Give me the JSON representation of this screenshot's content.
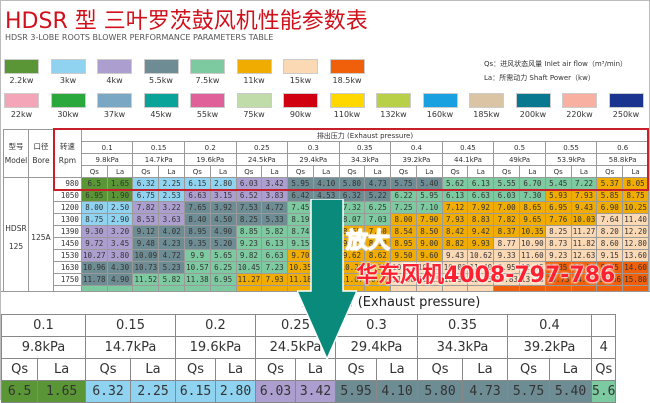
{
  "header": {
    "title": "HDSR 型 三叶罗茨鼓风机性能参数表",
    "subtitle": "HDSR 3-LOBE ROOTS BLOWER PERFORMANCE PARAMETERS TABLE"
  },
  "legend": {
    "row1": [
      {
        "label": "2.2kw",
        "color": "#5a9636"
      },
      {
        "label": "3kw",
        "color": "#8fd3f0"
      },
      {
        "label": "4kw",
        "color": "#ac9fd0"
      },
      {
        "label": "5.5kw",
        "color": "#6e8c93"
      },
      {
        "label": "7.5kw",
        "color": "#7dc9a0"
      },
      {
        "label": "11kw",
        "color": "#f0ac00"
      },
      {
        "label": "15kw",
        "color": "#fcd9b5"
      },
      {
        "label": "18.5kw",
        "color": "#f0600a"
      }
    ],
    "row2": [
      {
        "label": "22kw",
        "color": "#f4a6b8"
      },
      {
        "label": "30kw",
        "color": "#2aa83c"
      },
      {
        "label": "37kw",
        "color": "#7aa8c4"
      },
      {
        "label": "45kw",
        "color": "#0aa39a"
      },
      {
        "label": "55kw",
        "color": "#e0609a"
      },
      {
        "label": "75kw",
        "color": "#c0dca8"
      },
      {
        "label": "90kw",
        "color": "#d00010"
      },
      {
        "label": "110kw",
        "color": "#ffd800"
      },
      {
        "label": "132kw",
        "color": "#b8d048"
      },
      {
        "label": "160kw",
        "color": "#18a0e0"
      },
      {
        "label": "185kw",
        "color": "#dac4a4"
      },
      {
        "label": "200kw",
        "color": "#087890"
      },
      {
        "label": "220kw",
        "color": "#f8b0a0"
      },
      {
        "label": "250kw",
        "color": "#1a3490"
      }
    ],
    "notes": {
      "qs": "Qs：进风状态风量 Inlet air flow（m³/min）",
      "la": "La：所需动力 Shaft Power（kw）"
    }
  },
  "table": {
    "col_model_cn": "型号",
    "col_model_en": "Model",
    "col_bore_cn": "口径",
    "col_bore_en": "Bore",
    "col_rpm_cn": "转速",
    "col_rpm_en": "Rpm",
    "exhaust_label": "排出压力 (Exhaust pressure)",
    "pressures": [
      "0.1",
      "0.15",
      "0.2",
      "0.25",
      "0.3",
      "0.35",
      "0.4",
      "0.45",
      "0.5",
      "0.55",
      "0.6"
    ],
    "kpa": [
      "9.8kPa",
      "14.7kPa",
      "19.6kPa",
      "24.5kPa",
      "29.4kPa",
      "34.3kPa",
      "39.2kPa",
      "44.1kPa",
      "49kPa",
      "53.9kPa",
      "58.8kPa"
    ],
    "qs_label": "Qs",
    "la_label": "La",
    "model_line1": "HDSR",
    "model_line2": "125",
    "bore": "125A",
    "rows": [
      {
        "rpm": "980",
        "cells": [
          [
            "6.5",
            "1.65",
            "#5a9636"
          ],
          [
            "6.32",
            "2.25",
            "#8fd3f0"
          ],
          [
            "6.15",
            "2.80",
            "#8fd3f0"
          ],
          [
            "6.03",
            "3.42",
            "#ac9fd0"
          ],
          [
            "5.95",
            "4.10",
            "#6e8c93"
          ],
          [
            "5.80",
            "4.73",
            "#6e8c93"
          ],
          [
            "5.75",
            "5.40",
            "#6e8c93"
          ],
          [
            "5.62",
            "6.13",
            "#7dc9a0"
          ],
          [
            "5.55",
            "6.70",
            "#7dc9a0"
          ],
          [
            "5.45",
            "7.22",
            "#7dc9a0"
          ],
          [
            "5.37",
            "8.05",
            "#f0ac00"
          ]
        ]
      },
      {
        "rpm": "1050",
        "cells": [
          [
            "6.95",
            "1.90",
            "#5a9636"
          ],
          [
            "6.75",
            "2.53",
            "#8fd3f0"
          ],
          [
            "6.63",
            "3.15",
            "#ac9fd0"
          ],
          [
            "6.52",
            "3.83",
            "#ac9fd0"
          ],
          [
            "6.42",
            "4.53",
            "#6e8c93"
          ],
          [
            "6.32",
            "5.22",
            "#6e8c93"
          ],
          [
            "6.22",
            "5.95",
            "#7dc9a0"
          ],
          [
            "6.13",
            "6.63",
            "#7dc9a0"
          ],
          [
            "6.03",
            "7.30",
            "#7dc9a0"
          ],
          [
            "5.93",
            "7.93",
            "#f0ac00"
          ],
          [
            "5.85",
            "8.75",
            "#f0ac00"
          ]
        ]
      },
      {
        "rpm": "1200",
        "cells": [
          [
            "8.00",
            "2.50",
            "#8fd3f0"
          ],
          [
            "7.82",
            "3.22",
            "#ac9fd0"
          ],
          [
            "7.65",
            "3.92",
            "#6e8c93"
          ],
          [
            "7.53",
            "4.72",
            "#6e8c93"
          ],
          [
            "7.45",
            "5.45",
            "#7dc9a0"
          ],
          [
            "7.32",
            "6.25",
            "#7dc9a0"
          ],
          [
            "7.25",
            "7.10",
            "#7dc9a0"
          ],
          [
            "7.12",
            "7.92",
            "#f0ac00"
          ],
          [
            "7.00",
            "8.65",
            "#f0ac00"
          ],
          [
            "6.95",
            "9.43",
            "#f0ac00"
          ],
          [
            "6.90",
            "10.25",
            "#f0ac00"
          ]
        ]
      },
      {
        "rpm": "1300",
        "cells": [
          [
            "8.75",
            "2.90",
            "#8fd3f0"
          ],
          [
            "8.53",
            "3.63",
            "#ac9fd0"
          ],
          [
            "8.40",
            "4.50",
            "#6e8c93"
          ],
          [
            "8.25",
            "5.33",
            "#6e8c93"
          ],
          [
            "8.19",
            "6.10",
            "#7dc9a0"
          ],
          [
            "8.07",
            "7.03",
            "#7dc9a0"
          ],
          [
            "8.00",
            "7.90",
            "#f0ac00"
          ],
          [
            "7.93",
            "8.83",
            "#f0ac00"
          ],
          [
            "7.82",
            "9.65",
            "#f0ac00"
          ],
          [
            "7.76",
            "10.03",
            "#f0ac00"
          ],
          [
            "7.64",
            "11.40",
            "#fcd9b5"
          ]
        ]
      },
      {
        "rpm": "1390",
        "cells": [
          [
            "9.30",
            "3.20",
            "#ac9fd0"
          ],
          [
            "9.12",
            "4.02",
            "#6e8c93"
          ],
          [
            "8.95",
            "4.90",
            "#6e8c93"
          ],
          [
            "8.85",
            "5.82",
            "#7dc9a0"
          ],
          [
            "8.74",
            "6.70",
            "#7dc9a0"
          ],
          [
            "8.65",
            "7.60",
            "#f0ac00"
          ],
          [
            "8.54",
            "8.50",
            "#f0ac00"
          ],
          [
            "8.42",
            "9.42",
            "#f0ac00"
          ],
          [
            "8.37",
            "10.35",
            "#f0ac00"
          ],
          [
            "8.25",
            "11.27",
            "#fcd9b5"
          ],
          [
            "8.20",
            "12.20",
            "#fcd9b5"
          ]
        ]
      },
      {
        "rpm": "1450",
        "cells": [
          [
            "9.72",
            "3.45",
            "#ac9fd0"
          ],
          [
            "9.48",
            "4.23",
            "#6e8c93"
          ],
          [
            "9.35",
            "5.20",
            "#6e8c93"
          ],
          [
            "9.23",
            "6.13",
            "#7dc9a0"
          ],
          [
            "9.15",
            "7.05",
            "#7dc9a0"
          ],
          [
            "9.05",
            "8.10",
            "#f0ac00"
          ],
          [
            "8.95",
            "9.00",
            "#f0ac00"
          ],
          [
            "8.82",
            "9.93",
            "#f0ac00"
          ],
          [
            "8.77",
            "10.90",
            "#fcd9b5"
          ],
          [
            "8.73",
            "11.82",
            "#fcd9b5"
          ],
          [
            "8.60",
            "12.80",
            "#fcd9b5"
          ]
        ]
      },
      {
        "rpm": "1530",
        "cells": [
          [
            "10.27",
            "3.80",
            "#ac9fd0"
          ],
          [
            "10.09",
            "4.72",
            "#6e8c93"
          ],
          [
            "9.9",
            "5.65",
            "#7dc9a0"
          ],
          [
            "9.82",
            "6.63",
            "#7dc9a0"
          ],
          [
            "9.70",
            "7.55",
            "#f0ac00"
          ],
          [
            "9.62",
            "8.62",
            "#f0ac00"
          ],
          [
            "9.50",
            "9.60",
            "#f0ac00"
          ],
          [
            "9.43",
            "10.62",
            "#fcd9b5"
          ],
          [
            "9.33",
            "11.60",
            "#fcd9b5"
          ],
          [
            "9.23",
            "12.63",
            "#fcd9b5"
          ],
          [
            "9.15",
            "13.60",
            "#fcd9b5"
          ]
        ]
      },
      {
        "rpm": "1630",
        "cells": [
          [
            "10.96",
            "4.30",
            "#6e8c93"
          ],
          [
            "10.73",
            "5.23",
            "#6e8c93"
          ],
          [
            "10.57",
            "6.25",
            "#7dc9a0"
          ],
          [
            "10.45",
            "7.23",
            "#7dc9a0"
          ],
          [
            "10.35",
            "8.25",
            "#f0ac00"
          ],
          [
            "10.25",
            "9.35",
            "#f0ac00"
          ],
          [
            "10.17",
            "10.35",
            "#fcd9b5"
          ],
          [
            "10.05",
            "11.40",
            "#fcd9b5"
          ],
          [
            "9.95",
            "12.45",
            "#fcd9b5"
          ],
          [
            "9.85",
            "13.53",
            "#f0600a"
          ],
          [
            "9.75",
            "14.60",
            "#f0600a"
          ]
        ]
      },
      {
        "rpm": "1750",
        "cells": [
          [
            "11.78",
            "4.90",
            "#6e8c93"
          ],
          [
            "11.52",
            "5.82",
            "#7dc9a0"
          ],
          [
            "11.38",
            "6.95",
            "#7dc9a0"
          ],
          [
            "11.27",
            "7.93",
            "#f0ac00"
          ],
          [
            "11.18",
            "9.00",
            "#f0ac00"
          ],
          [
            "11.07",
            "10.22",
            "#f0ac00"
          ],
          [
            "11.00",
            "11.25",
            "#fcd9b5"
          ],
          [
            "10.93",
            "12.35",
            "#fcd9b5"
          ],
          [
            "10.83",
            "13.38",
            "#fcd9b5"
          ],
          [
            "10.73",
            "14.72",
            "#f0600a"
          ],
          [
            "10.66",
            "15.80",
            "#f0600a"
          ]
        ]
      }
    ]
  },
  "zoom_section": {
    "exhaust_label": "排出压力 (Exhaust pressure)",
    "pressures": [
      "0.1",
      "0.15",
      "0.2",
      "0.25",
      "0.3",
      "0.35",
      "0.4"
    ],
    "kpa": [
      "9.8kPa",
      "14.7kPa",
      "19.6kPa",
      "24.5kPa",
      "29.4kPa",
      "34.3kPa",
      "39.2kPa"
    ],
    "qs_label": "Qs",
    "la_label": "La",
    "cells": [
      [
        "6.5",
        "1.65",
        "#5a9636"
      ],
      [
        "6.32",
        "2.25",
        "#8fd3f0"
      ],
      [
        "6.15",
        "2.80",
        "#8fd3f0"
      ],
      [
        "6.03",
        "3.42",
        "#ac9fd0"
      ],
      [
        "5.95",
        "4.10",
        "#6e8c93"
      ],
      [
        "5.80",
        "4.73",
        "#6e8c93"
      ],
      [
        "5.75",
        "5.40",
        "#6e8c93"
      ],
      [
        "5.6",
        "",
        "#7dc9a0"
      ]
    ]
  },
  "overlay": {
    "line1": "放大",
    "line2": "华东风机4008-797-786",
    "arrow_color": "#0a8a7a"
  }
}
